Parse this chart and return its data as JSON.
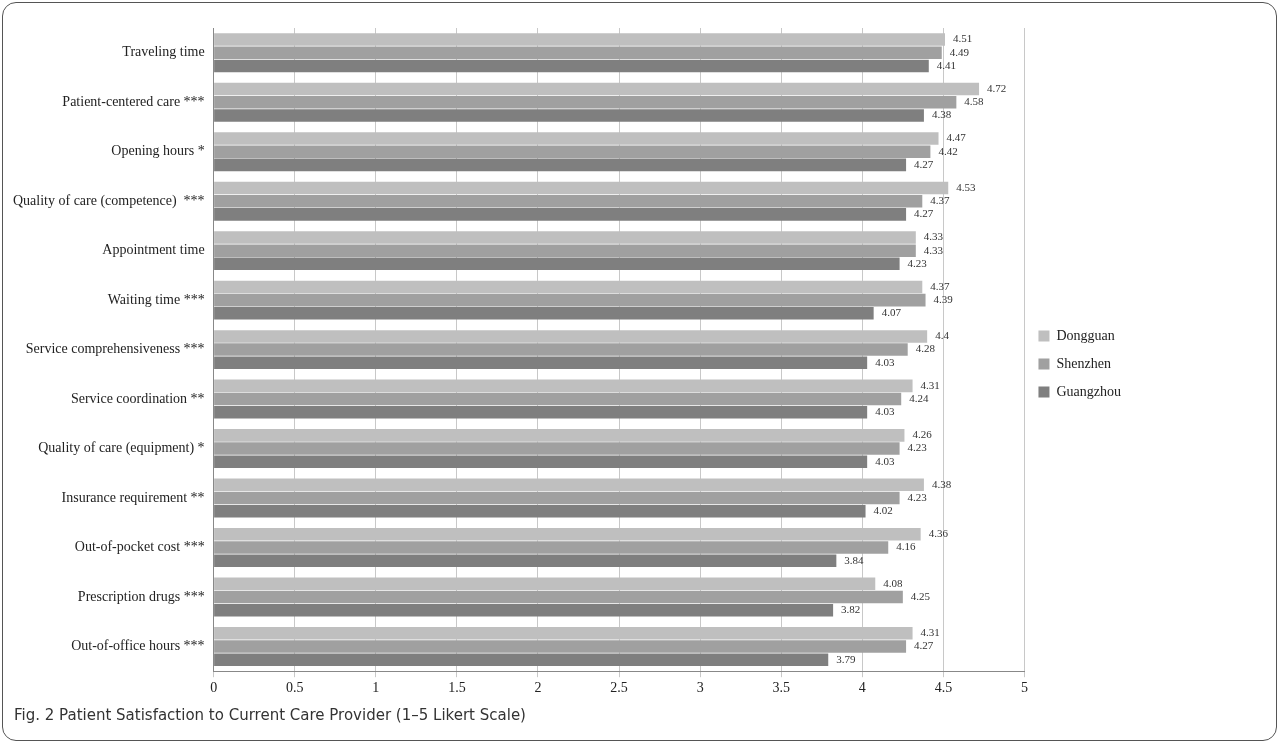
{
  "chart_data": {
    "type": "bar",
    "orientation": "horizontal",
    "categories": [
      "Traveling time",
      "Patient-centered care ***",
      "Opening hours *",
      "Quality of care (competence)  ***",
      "Appointment time",
      "Waiting time ***",
      "Service comprehensiveness ***",
      "Service coordination **",
      "Quality of care (equipment) *",
      "Insurance requirement **",
      "Out-of-pocket cost ***",
      "Prescription drugs ***",
      "Out-of-office hours ***"
    ],
    "series": [
      {
        "name": "Dongguan",
        "color": "#bfbfbf",
        "values": [
          4.51,
          4.72,
          4.47,
          4.53,
          4.33,
          4.37,
          4.4,
          4.31,
          4.26,
          4.38,
          4.36,
          4.08,
          4.31
        ]
      },
      {
        "name": "Shenzhen",
        "color": "#a0a0a0",
        "values": [
          4.49,
          4.58,
          4.42,
          4.37,
          4.33,
          4.39,
          4.28,
          4.24,
          4.23,
          4.23,
          4.16,
          4.25,
          4.27
        ]
      },
      {
        "name": "Guangzhou",
        "color": "#7f7f7f",
        "values": [
          4.41,
          4.38,
          4.27,
          4.27,
          4.23,
          4.07,
          4.03,
          4.03,
          4.03,
          4.02,
          3.84,
          3.82,
          3.79
        ]
      }
    ],
    "xlim": [
      0,
      5
    ],
    "xticks": [
      0,
      0.5,
      1,
      1.5,
      2,
      2.5,
      3,
      3.5,
      4,
      4.5,
      5
    ],
    "grid": "x",
    "legend": "right",
    "data_labels": true,
    "annotations": [
      "Fig. 2 Patient Satisfaction to Current Care Provider (1–5 Likert Scale)"
    ]
  }
}
